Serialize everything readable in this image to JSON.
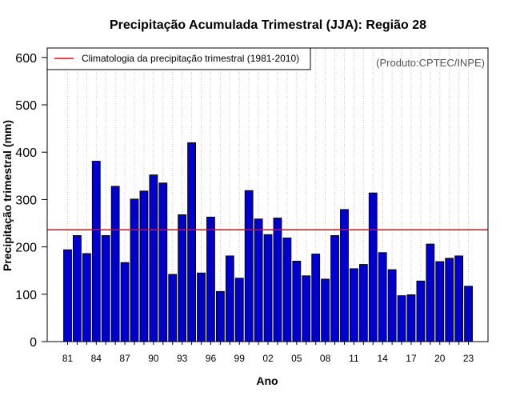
{
  "chart_data": {
    "type": "bar",
    "title": "Precipitação Acumulada Trimestral (JJA): Região 28",
    "xlabel": "Ano",
    "ylabel": "Precipitação trimestral (mm)",
    "ylim": [
      0,
      620
    ],
    "yticks": [
      0,
      100,
      200,
      300,
      400,
      500,
      600
    ],
    "x": [
      1981,
      1982,
      1983,
      1984,
      1985,
      1986,
      1987,
      1988,
      1989,
      1990,
      1991,
      1992,
      1993,
      1994,
      1995,
      1996,
      1997,
      1998,
      1999,
      2000,
      2001,
      2002,
      2003,
      2004,
      2005,
      2006,
      2007,
      2008,
      2009,
      2010,
      2011,
      2012,
      2013,
      2014,
      2015,
      2016,
      2017,
      2018,
      2019,
      2020,
      2021,
      2022,
      2023
    ],
    "xtick_labels": [
      {
        "year": 1981,
        "label": "81"
      },
      {
        "year": 1984,
        "label": "84"
      },
      {
        "year": 1987,
        "label": "87"
      },
      {
        "year": 1990,
        "label": "90"
      },
      {
        "year": 1993,
        "label": "93"
      },
      {
        "year": 1996,
        "label": "96"
      },
      {
        "year": 1999,
        "label": "99"
      },
      {
        "year": 2002,
        "label": "02"
      },
      {
        "year": 2005,
        "label": "05"
      },
      {
        "year": 2008,
        "label": "08"
      },
      {
        "year": 2011,
        "label": "11"
      },
      {
        "year": 2014,
        "label": "14"
      },
      {
        "year": 2017,
        "label": "17"
      },
      {
        "year": 2020,
        "label": "20"
      },
      {
        "year": 2023,
        "label": "23"
      }
    ],
    "values": [
      194,
      224,
      186,
      381,
      224,
      328,
      167,
      301,
      318,
      352,
      335,
      142,
      268,
      420,
      145,
      263,
      106,
      181,
      134,
      319,
      259,
      226,
      261,
      219,
      170,
      139,
      185,
      132,
      224,
      279,
      154,
      163,
      314,
      188,
      152,
      97,
      99,
      128,
      206,
      169,
      176,
      181,
      117
    ],
    "bar_color": "#0000cc",
    "climatology": {
      "label": "Climatologia da precipitação trimestral (1981-2010)",
      "value": 236,
      "color": "#ff0000"
    },
    "legend_position": "top-left",
    "grid": "vertical dotted",
    "credit": "(Produto:CPTEC/INPE)"
  }
}
